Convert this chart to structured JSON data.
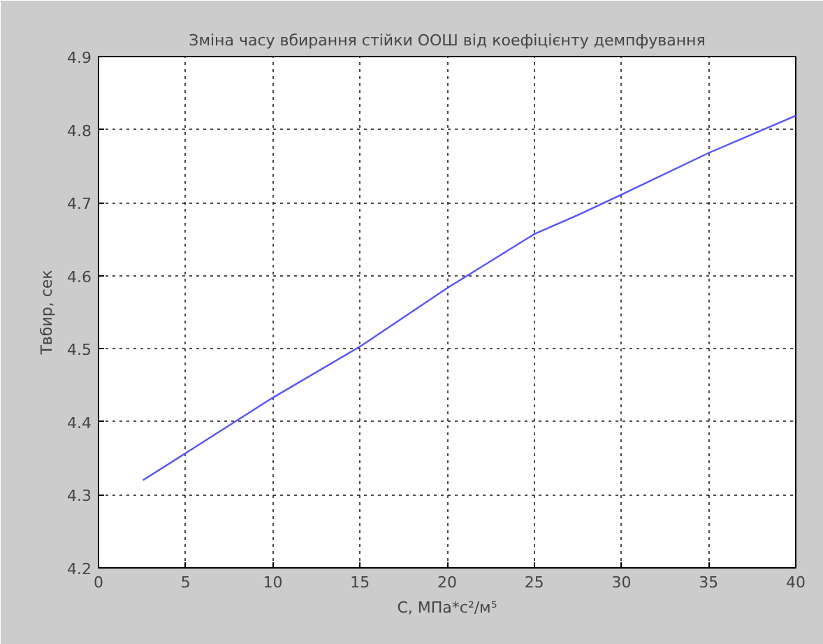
{
  "chart_data": {
    "type": "line",
    "title": "Зміна часу вбирання стійки ООШ від коефіцієнту демпфування",
    "xlabel": "C, МПа*с²/м⁵",
    "ylabel": "Твбир, сек",
    "x": [
      2.55,
      5,
      10,
      15,
      20,
      25,
      27.5,
      30,
      35,
      40
    ],
    "series": [
      {
        "color": "#5555ff",
        "values": [
          4.32,
          4.357,
          4.433,
          4.503,
          4.583,
          4.657,
          4.683,
          4.711,
          4.768,
          4.819
        ]
      }
    ],
    "xlim": [
      0,
      40
    ],
    "ylim": [
      4.2,
      4.9
    ],
    "xticks": [
      0,
      5,
      10,
      15,
      20,
      25,
      30,
      35,
      40
    ],
    "yticks": [
      4.2,
      4.3,
      4.4,
      4.5,
      4.6,
      4.7,
      4.8,
      4.9
    ],
    "grid": true,
    "line_style": "solid",
    "marker": "none"
  }
}
